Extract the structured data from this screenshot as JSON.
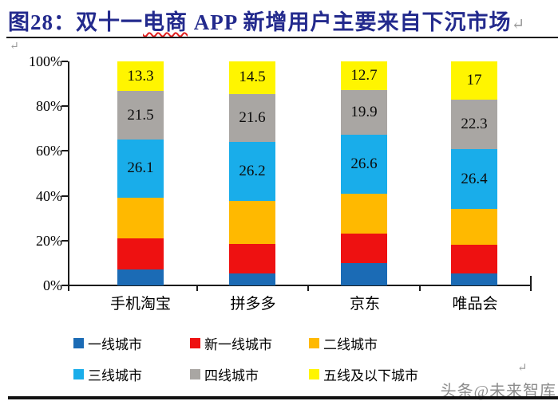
{
  "header": {
    "title_prefix": "图28：双十一",
    "title_misspelled": "电商",
    "title_suffix": " APP 新增用户主要来自下沉市场",
    "pilcrow": "↵"
  },
  "body": {
    "pilcrow": "↵",
    "legend_pilcrow": "↵",
    "watermark": "头条@未来智库"
  },
  "colors": {
    "title": "#232A8D",
    "axis": "#1b1b1b",
    "tier1_blue": "#1B6BB5",
    "new_tier1_red": "#EE1111",
    "tier2_orange": "#FFB900",
    "tier3_lightblue": "#19ADEA",
    "tier4_gray": "#A9A6A3",
    "tier5_yellow": "#FFF500",
    "watermark_gray": "#8D8D8D"
  },
  "chart_data": {
    "type": "bar",
    "subtype": "stacked-100-percent-column",
    "categories": [
      "手机淘宝",
      "拼多多",
      "京东",
      "唯品会"
    ],
    "series": [
      {
        "name": "一线城市",
        "color": "#1B6BB5",
        "values": [
          7.1,
          5.5,
          9.9,
          5.4
        ],
        "values_estimated": true,
        "labels": null
      },
      {
        "name": "新一线城市",
        "color": "#EE1111",
        "values": [
          13.9,
          12.9,
          13.2,
          12.9
        ],
        "values_estimated": true,
        "labels": null
      },
      {
        "name": "二线城市",
        "color": "#FFB900",
        "values": [
          18.1,
          19.3,
          17.7,
          16.0
        ],
        "values_estimated": true,
        "labels": null
      },
      {
        "name": "三线城市",
        "color": "#19ADEA",
        "values": [
          26.1,
          26.2,
          26.6,
          26.4
        ],
        "values_estimated": false,
        "labels": [
          "26.1",
          "26.2",
          "26.6",
          "26.4"
        ]
      },
      {
        "name": "四线城市",
        "color": "#A9A6A3",
        "values": [
          21.5,
          21.6,
          19.9,
          22.3
        ],
        "values_estimated": false,
        "labels": [
          "21.5",
          "21.6",
          "19.9",
          "22.3"
        ],
        "texture": "dots"
      },
      {
        "name": "五线及以下城市",
        "color": "#FFF500",
        "values": [
          13.3,
          14.5,
          12.7,
          17.0
        ],
        "values_estimated": false,
        "labels": [
          "13.3",
          "14.5",
          "12.7",
          "17"
        ]
      }
    ],
    "y_ticks": [
      "100%",
      "80%",
      "60%",
      "40%",
      "20%",
      "0%"
    ],
    "ylim": [
      0,
      100
    ],
    "grid": false,
    "legend_position": "bottom"
  }
}
